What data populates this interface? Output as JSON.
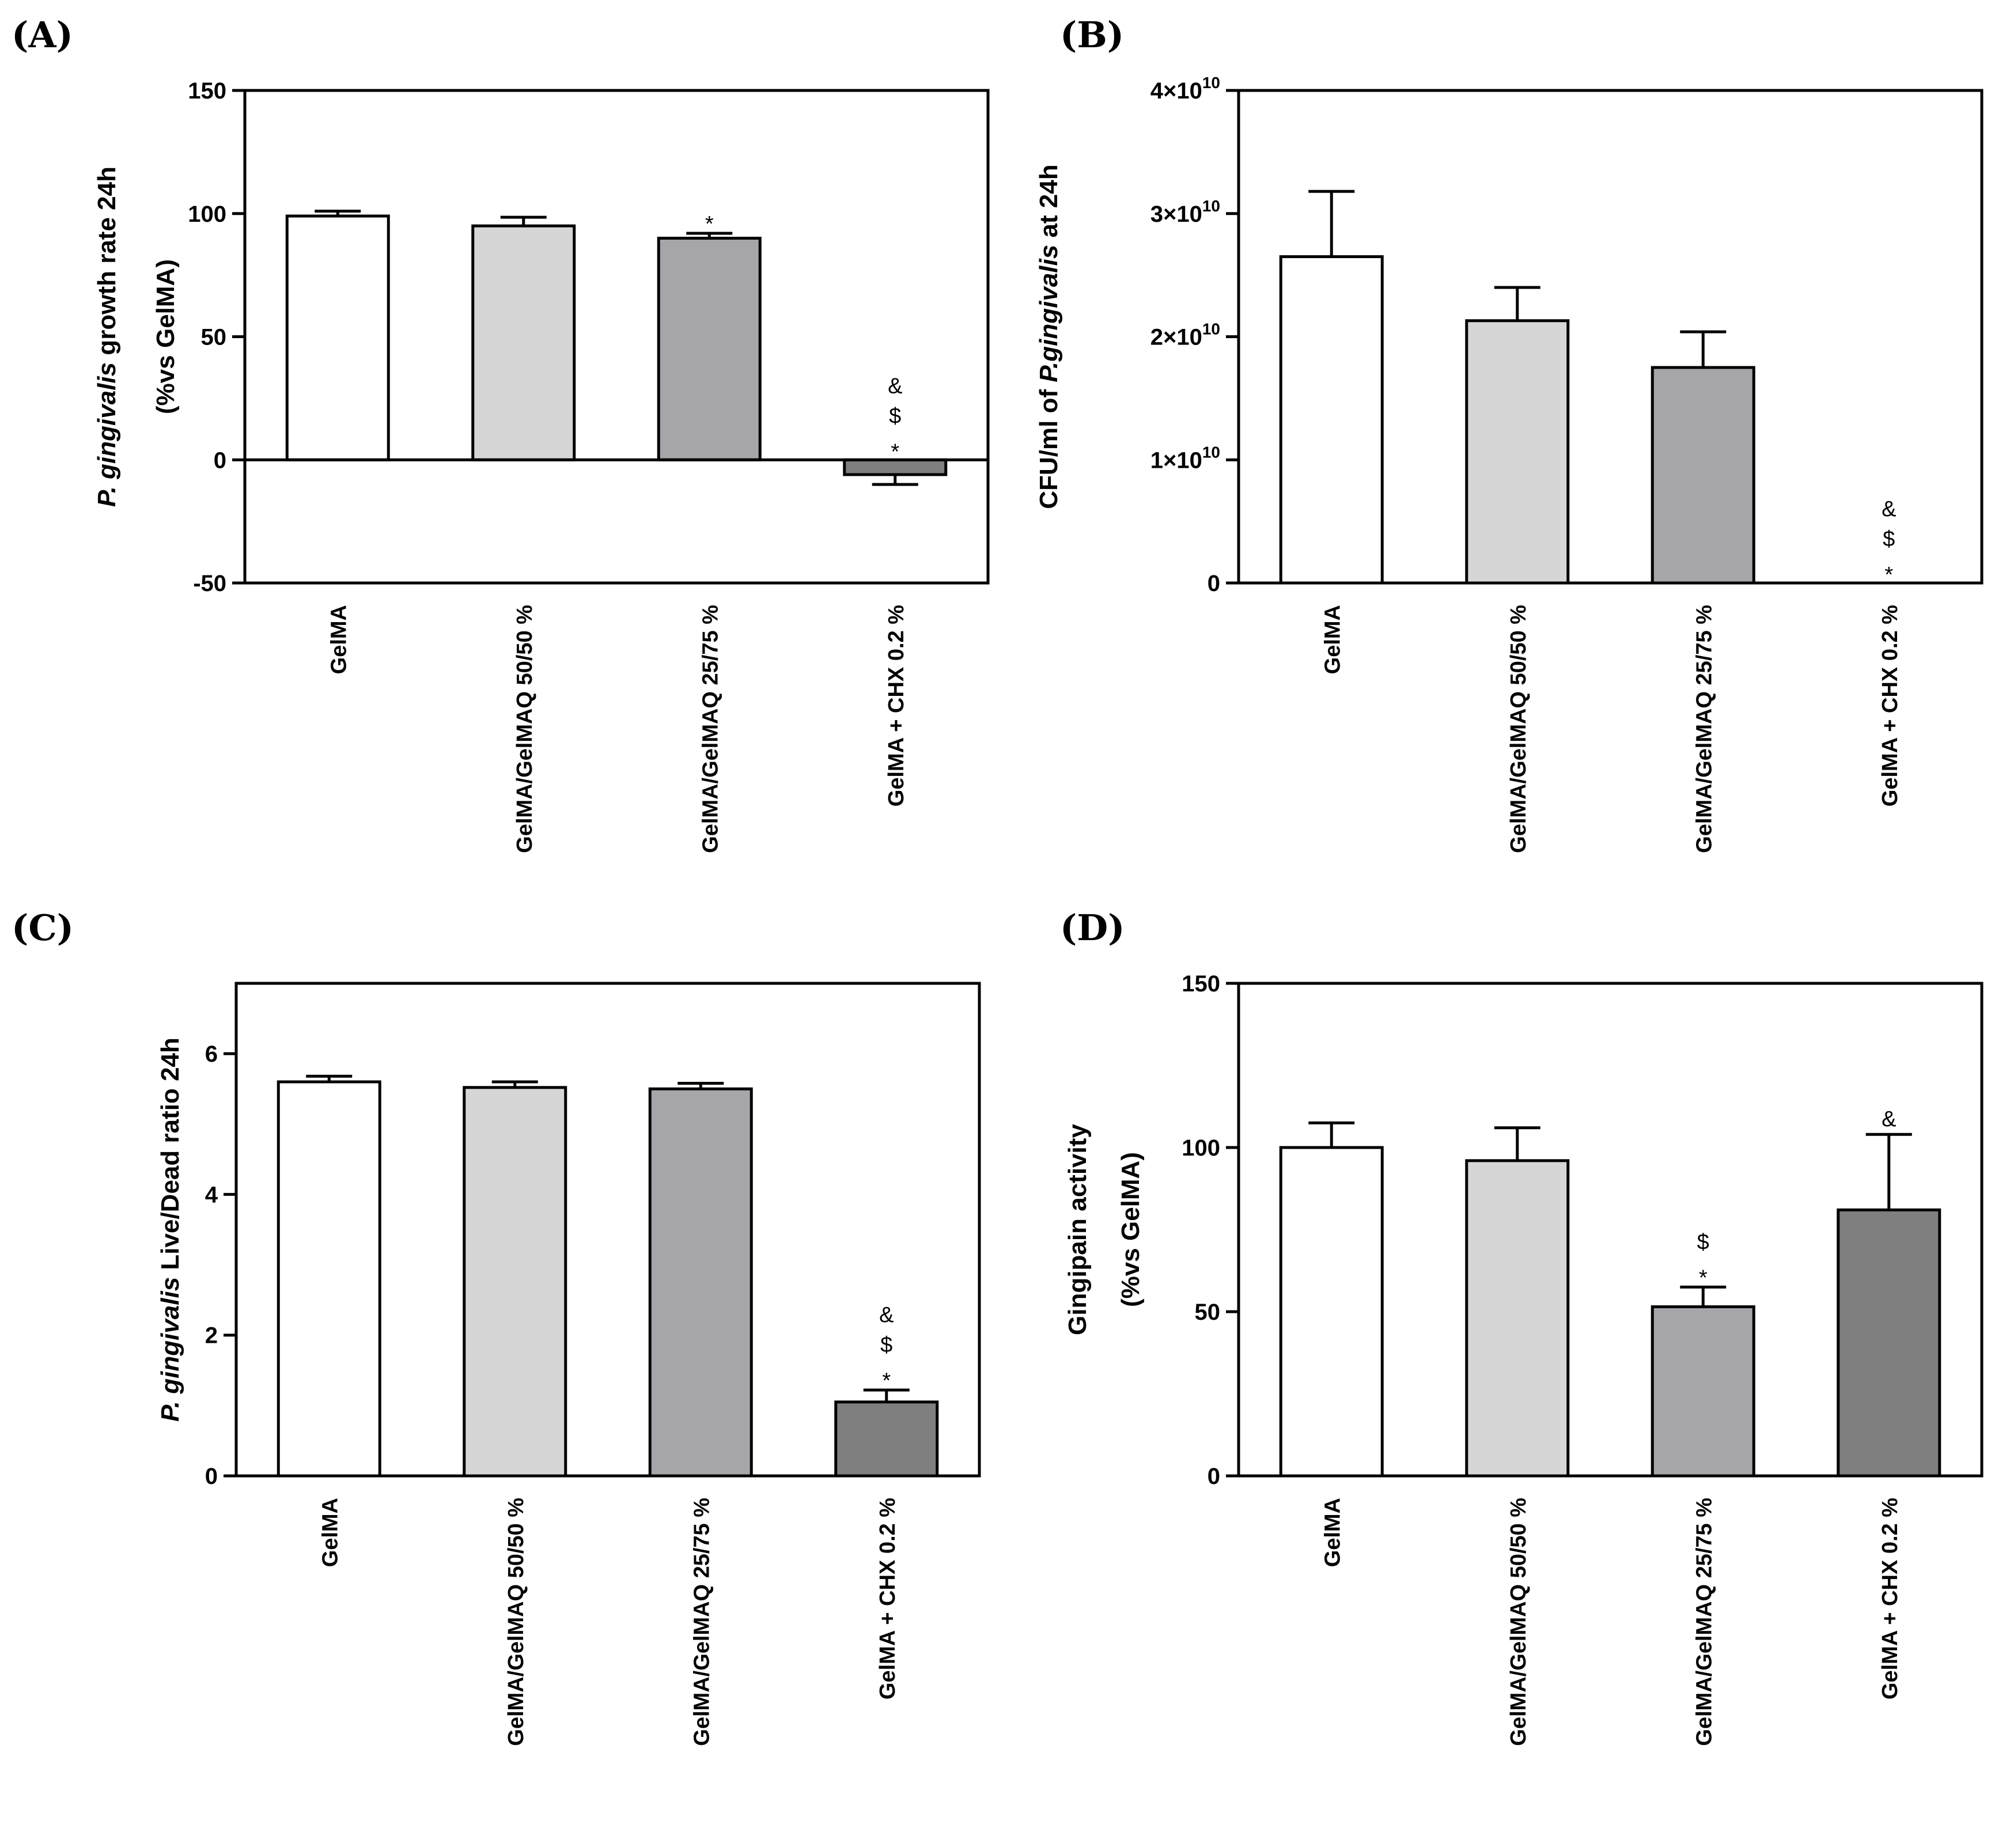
{
  "chart_data": [
    {
      "id": "A",
      "panel_label": "(A)",
      "type": "bar",
      "ylabel_lines": [
        [
          {
            "text": "P. gingivalis",
            "italic": true
          },
          {
            "text": " growth rate 24h",
            "italic": false
          }
        ],
        [
          {
            "text": "(%vs GelMA)",
            "italic": false
          }
        ]
      ],
      "categories": [
        "GelMA",
        "GelMA/GelMAQ 50/50 %",
        "GelMA/GelMAQ 25/75 %",
        "GelMA + CHX 0.2 %"
      ],
      "values": [
        99,
        95,
        90,
        -6
      ],
      "errors": [
        2,
        3.5,
        2,
        4
      ],
      "colors": [
        "#ffffff",
        "#d6d6d6",
        "#a6a5aa",
        "#7f7f7f"
      ],
      "ylim": [
        -50,
        150
      ],
      "ticks": [
        -50,
        0,
        50,
        100,
        150
      ],
      "tick_labels": [
        "-50",
        "0",
        "50",
        "100",
        "150"
      ],
      "annotations": [
        [],
        [],
        [
          "*"
        ],
        [
          "*",
          "$",
          "&"
        ]
      ],
      "zero_line": true
    },
    {
      "id": "B",
      "panel_label": "(B)",
      "type": "bar",
      "ylabel_lines": [
        [
          {
            "text": "CFU/ml of ",
            "italic": false
          },
          {
            "text": "P.gingivalis",
            "italic": true
          },
          {
            "text": " at 24h",
            "italic": false
          }
        ]
      ],
      "categories": [
        "GelMA",
        "GelMA/GelMAQ 50/50 %",
        "GelMA/GelMAQ 25/75 %",
        "GelMA + CHX 0.2 %"
      ],
      "values": [
        26500000000,
        21300000000,
        17500000000,
        0
      ],
      "errors": [
        5300000000,
        2700000000,
        2900000000,
        0
      ],
      "colors": [
        "#ffffff",
        "#d6d6d6",
        "#a6a5aa",
        "#7f7f7f"
      ],
      "ylim": [
        0,
        40000000000
      ],
      "ticks": [
        0,
        10000000000,
        20000000000,
        30000000000,
        40000000000
      ],
      "tick_labels": [
        "0",
        "1×10",
        "2×10",
        "3×10",
        "4×10"
      ],
      "tick_exps": [
        "",
        "10",
        "10",
        "10",
        "10"
      ],
      "annotations": [
        [],
        [],
        [],
        [
          "*",
          "$",
          "&"
        ]
      ],
      "zero_line": false
    },
    {
      "id": "C",
      "panel_label": "(C)",
      "type": "bar",
      "ylabel_lines": [
        [
          {
            "text": "P. gingivalis",
            "italic": true
          },
          {
            "text": " Live/Dead ratio 24h",
            "italic": false
          }
        ]
      ],
      "categories": [
        "GelMA",
        "GelMA/GelMAQ 50/50 %",
        "GelMA/GelMAQ 25/75 %",
        "GelMA + CHX 0.2 %"
      ],
      "values": [
        5.6,
        5.52,
        5.5,
        1.05
      ],
      "errors": [
        0.08,
        0.08,
        0.08,
        0.17
      ],
      "colors": [
        "#ffffff",
        "#d6d6d6",
        "#a6a5aa",
        "#7f7f7f"
      ],
      "ylim": [
        0,
        7
      ],
      "ticks": [
        0,
        2,
        4,
        6
      ],
      "tick_labels": [
        "0",
        "2",
        "4",
        "6"
      ],
      "annotations": [
        [],
        [],
        [],
        [
          "*",
          "$",
          "&"
        ]
      ],
      "zero_line": false
    },
    {
      "id": "D",
      "panel_label": "(D)",
      "type": "bar",
      "ylabel_lines": [
        [
          {
            "text": "Gingipain activity",
            "italic": false
          }
        ],
        [
          {
            "text": "(%vs GelMA)",
            "italic": false
          }
        ]
      ],
      "categories": [
        "GelMA",
        "GelMA/GelMAQ 50/50 %",
        "GelMA/GelMAQ 25/75 %",
        "GelMA + CHX 0.2 %"
      ],
      "values": [
        100,
        96,
        51.5,
        81
      ],
      "errors": [
        7.5,
        10,
        6,
        23
      ],
      "colors": [
        "#ffffff",
        "#d6d6d6",
        "#a6a5aa",
        "#7f7f7f"
      ],
      "ylim": [
        0,
        150
      ],
      "ticks": [
        0,
        50,
        100,
        150
      ],
      "tick_labels": [
        "0",
        "50",
        "100",
        "150"
      ],
      "annotations": [
        [],
        [],
        [
          "*",
          "$"
        ],
        [
          "&"
        ]
      ],
      "zero_line": false
    }
  ]
}
